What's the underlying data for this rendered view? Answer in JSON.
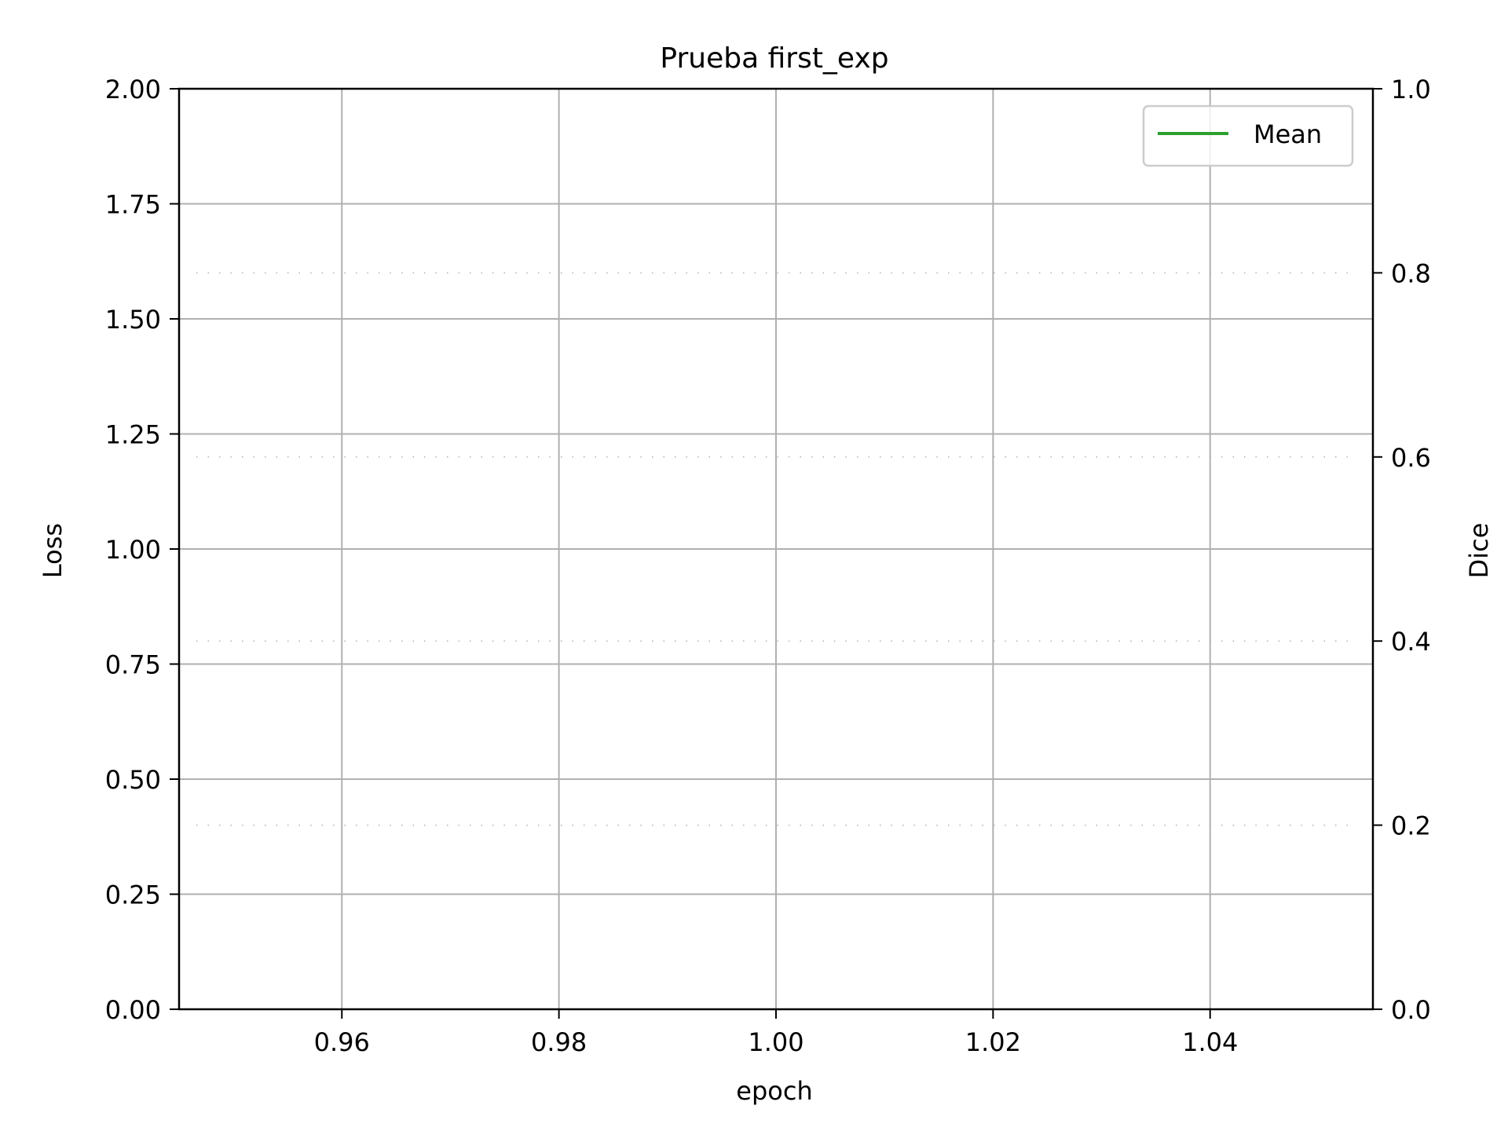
{
  "chart_data": {
    "type": "line",
    "title": "Prueba first_exp",
    "xlabel": "epoch",
    "ylabel": "Loss",
    "y2label": "Dice",
    "xlim": [
      0.945,
      1.055
    ],
    "ylim": [
      0,
      2
    ],
    "y2lim": [
      0,
      1
    ],
    "x_ticks": [
      0.96,
      0.98,
      1.0,
      1.02,
      1.04
    ],
    "x_tick_labels": [
      "0.96",
      "0.98",
      "1.00",
      "1.02",
      "1.04"
    ],
    "y_ticks": [
      0,
      0.25,
      0.5,
      0.75,
      1.0,
      1.25,
      1.5,
      1.75,
      2.0
    ],
    "y_tick_labels": [
      "0.00",
      "0.25",
      "0.50",
      "0.75",
      "1.00",
      "1.25",
      "1.50",
      "1.75",
      "2.00"
    ],
    "y2_ticks": [
      0,
      0.2,
      0.4,
      0.6,
      0.8,
      1.0
    ],
    "y2_tick_labels": [
      "0.0",
      "0.2",
      "0.4",
      "0.6",
      "0.8",
      "1.0"
    ],
    "grid": true,
    "y2_grid": "dotted",
    "legend_position": "top-right",
    "series": [
      {
        "name": "Mean",
        "color": "#2ca02c",
        "axis": "y2",
        "x": [],
        "values": []
      }
    ]
  }
}
